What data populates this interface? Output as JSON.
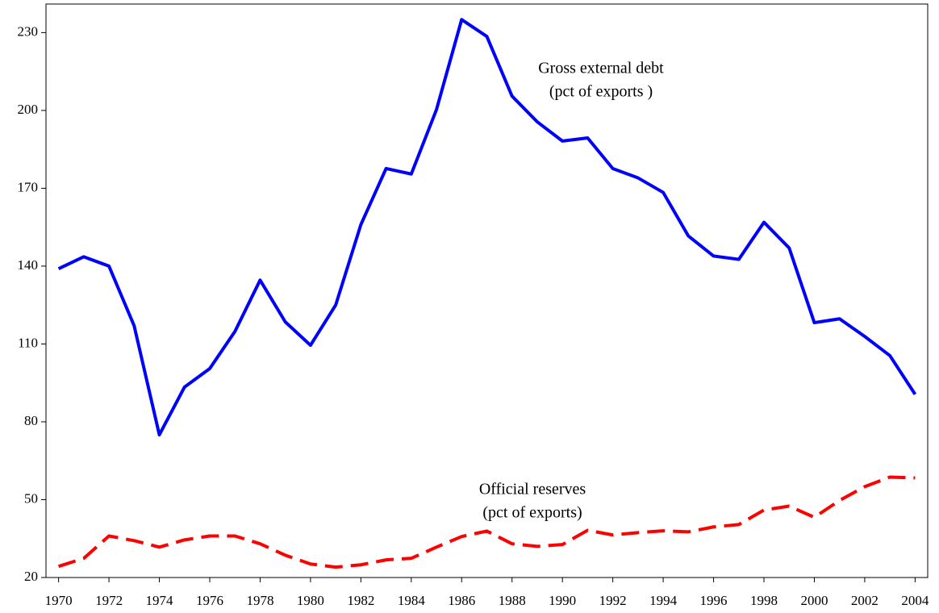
{
  "chart_data": {
    "type": "line",
    "x": [
      1970,
      1971,
      1972,
      1973,
      1974,
      1975,
      1976,
      1977,
      1978,
      1979,
      1980,
      1981,
      1982,
      1983,
      1984,
      1985,
      1986,
      1987,
      1988,
      1989,
      1990,
      1991,
      1992,
      1993,
      1994,
      1995,
      1996,
      1997,
      1998,
      1999,
      2000,
      2001,
      2002,
      2003,
      2004
    ],
    "series": [
      {
        "color": "#0000ff",
        "dashed": false,
        "values": [
          139,
          143.6,
          140,
          117,
          75,
          93.4,
          100.5,
          114.8,
          134.6,
          118.5,
          109.5,
          125,
          156,
          177.6,
          175.5,
          200.3,
          235,
          228.5,
          205.5,
          195.6,
          188.2,
          189.4,
          177.6,
          174,
          168.4,
          151.6,
          143.9,
          142.6,
          156.9,
          147,
          118.2,
          119.7,
          112.9,
          105.5,
          90.6
        ]
      },
      {
        "color": "#ff0000",
        "dashed": true,
        "values": [
          24.3,
          27.4,
          36,
          34.2,
          31.7,
          34.5,
          36,
          36,
          33,
          28.6,
          25.2,
          24,
          24.9,
          26.8,
          27.4,
          31.7,
          35.8,
          37.9,
          33,
          32,
          32.7,
          38.2,
          36.4,
          37.3,
          38,
          37.6,
          39.5,
          40.4,
          46,
          47.5,
          43.2,
          49.7,
          55,
          58.7,
          58.4
        ]
      }
    ],
    "annotations": [
      {
        "lines": [
          "Gross external debt",
          "(pct of exports )"
        ]
      },
      {
        "lines": [
          "Official reserves",
          "(pct of exports)"
        ]
      }
    ],
    "xlim": [
      1969.5,
      2004.5
    ],
    "xticks": [
      1970,
      1972,
      1974,
      1976,
      1978,
      1980,
      1982,
      1984,
      1986,
      1988,
      1990,
      1992,
      1994,
      1996,
      1998,
      2000,
      2002,
      2004
    ],
    "ylim": [
      20,
      241
    ],
    "yticks": [
      20,
      50,
      80,
      110,
      140,
      170,
      200,
      230
    ],
    "grid": false
  }
}
